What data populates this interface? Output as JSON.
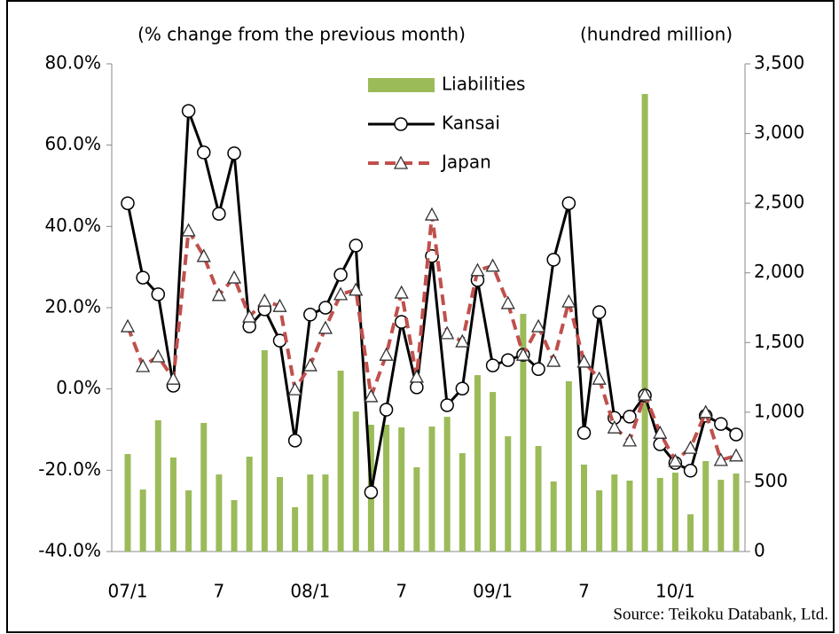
{
  "chart_data": {
    "type": "bar",
    "y_label": "(% change from the previous month)",
    "y2_label": "(hundred million)",
    "source": "Source: Teikoku Databank, Ltd.",
    "legend": "upper center",
    "categories": [
      "07/1",
      null,
      null,
      null,
      null,
      null,
      "7",
      null,
      null,
      null,
      null,
      null,
      "08/1",
      null,
      null,
      null,
      null,
      null,
      "7",
      null,
      null,
      null,
      null,
      null,
      "09/1",
      null,
      null,
      null,
      null,
      null,
      "7",
      null,
      null,
      null,
      null,
      null,
      "10/1",
      null,
      null,
      null,
      null
    ],
    "series": [
      {
        "name": "Liabilities",
        "type": "bar",
        "axis": "y2",
        "color": "#9bbb59",
        "values": [
          700,
          445,
          942,
          675,
          439,
          923,
          553,
          369,
          681,
          1445,
          535,
          318,
          553,
          553,
          1298,
          1005,
          910,
          910,
          891,
          605,
          897,
          967,
          706,
          1266,
          1145,
          827,
          1706,
          757,
          503,
          1222,
          624,
          439,
          553,
          509,
          3284,
          528,
          566,
          267,
          649,
          515,
          560
        ]
      },
      {
        "name": "Kansai",
        "type": "line",
        "marker": "circle",
        "color": "#000000",
        "values": [
          45.7,
          27.4,
          23.3,
          0.8,
          68.4,
          58.2,
          43.1,
          58.0,
          15.4,
          19.6,
          11.9,
          -12.7,
          18.3,
          20.0,
          28.1,
          35.3,
          -25.4,
          -5.1,
          16.5,
          0.4,
          32.7,
          -4.0,
          0.1,
          26.8,
          5.8,
          7.1,
          8.4,
          4.9,
          31.8,
          45.7,
          -10.8,
          18.9,
          -7.1,
          -6.8,
          -1.6,
          -13.6,
          -18.2,
          -20.1,
          -6.6,
          -8.6,
          -11.2
        ]
      },
      {
        "name": "Japan",
        "type": "line",
        "marker": "triangle",
        "dashed": true,
        "color": "#c0504d",
        "values": [
          15.4,
          5.6,
          8.0,
          2.5,
          39.0,
          32.7,
          23.1,
          27.4,
          17.8,
          21.7,
          20.4,
          -0.1,
          5.8,
          15.0,
          23.3,
          24.4,
          -1.8,
          8.4,
          23.7,
          3.0,
          42.9,
          13.7,
          11.7,
          29.2,
          30.3,
          21.1,
          8.4,
          15.4,
          6.9,
          21.5,
          6.7,
          2.5,
          -9.5,
          -12.7,
          -1.4,
          -10.8,
          -17.7,
          -14.5,
          -5.7,
          -17.5,
          -16.4
        ]
      }
    ],
    "ylim": [
      -40,
      80
    ],
    "yticks": [
      {
        "value": -40,
        "label": "-40.0%"
      },
      {
        "value": -20,
        "label": "-20.0%"
      },
      {
        "value": 0,
        "label": "0.0%"
      },
      {
        "value": 20,
        "label": "20.0%"
      },
      {
        "value": 40,
        "label": "40.0%"
      },
      {
        "value": 60,
        "label": "60.0%"
      },
      {
        "value": 80,
        "label": "80.0%"
      }
    ],
    "y2lim": [
      0,
      3500
    ],
    "y2ticks": [
      0,
      500,
      {
        "value": 1000,
        "label": "1,000"
      },
      {
        "value": 1500,
        "label": "1,500"
      },
      {
        "value": 2000,
        "label": "2,000"
      },
      {
        "value": 2500,
        "label": "2,500"
      },
      {
        "value": 3000,
        "label": "3,000"
      },
      {
        "value": 3500,
        "label": "3,500"
      }
    ],
    "grid": false
  }
}
